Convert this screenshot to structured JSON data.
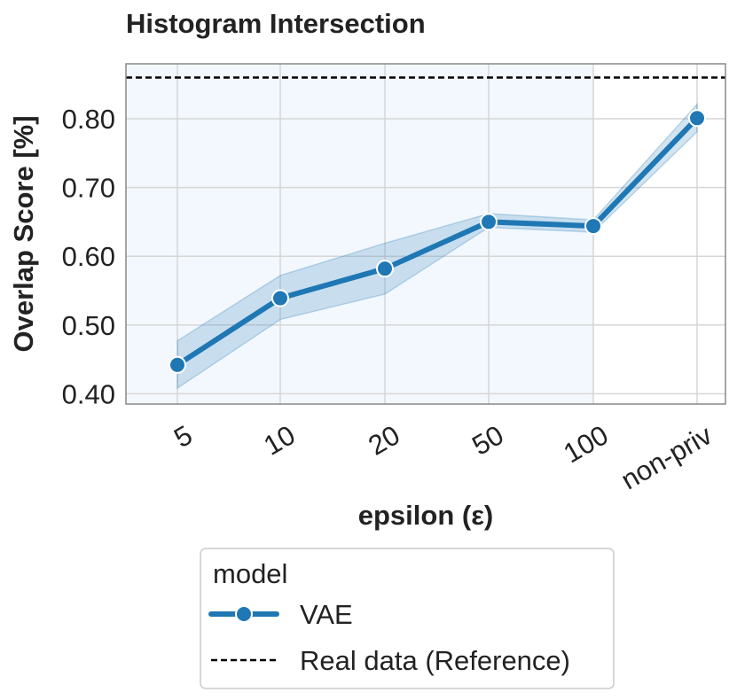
{
  "chart_data": {
    "type": "line",
    "title": "Histogram Intersection",
    "xlabel": "epsilon (ε)",
    "ylabel": "Overlap Score [%]",
    "categories": [
      "5",
      "10",
      "20",
      "50",
      "100",
      "non-priv"
    ],
    "ylim": [
      0.385,
      0.88
    ],
    "yticks": [
      0.4,
      0.5,
      0.6,
      0.7,
      0.8
    ],
    "ytick_labels": [
      "0.40",
      "0.50",
      "0.60",
      "0.70",
      "0.80"
    ],
    "grid": true,
    "private_region_shaded": true,
    "series": [
      {
        "name": "VAE",
        "color": "#1f77b4",
        "values": [
          0.442,
          0.539,
          0.582,
          0.65,
          0.644,
          0.801
        ],
        "ci_lower": [
          0.408,
          0.508,
          0.545,
          0.642,
          0.635,
          0.781
        ],
        "ci_upper": [
          0.477,
          0.572,
          0.619,
          0.662,
          0.653,
          0.821
        ]
      }
    ],
    "reference": {
      "name": "Real data (Reference)",
      "value": 0.86,
      "color": "#000000",
      "style": "dashed"
    },
    "legend": {
      "title": "model",
      "placement": "below",
      "entries": [
        "VAE",
        "Real data (Reference)"
      ]
    }
  }
}
